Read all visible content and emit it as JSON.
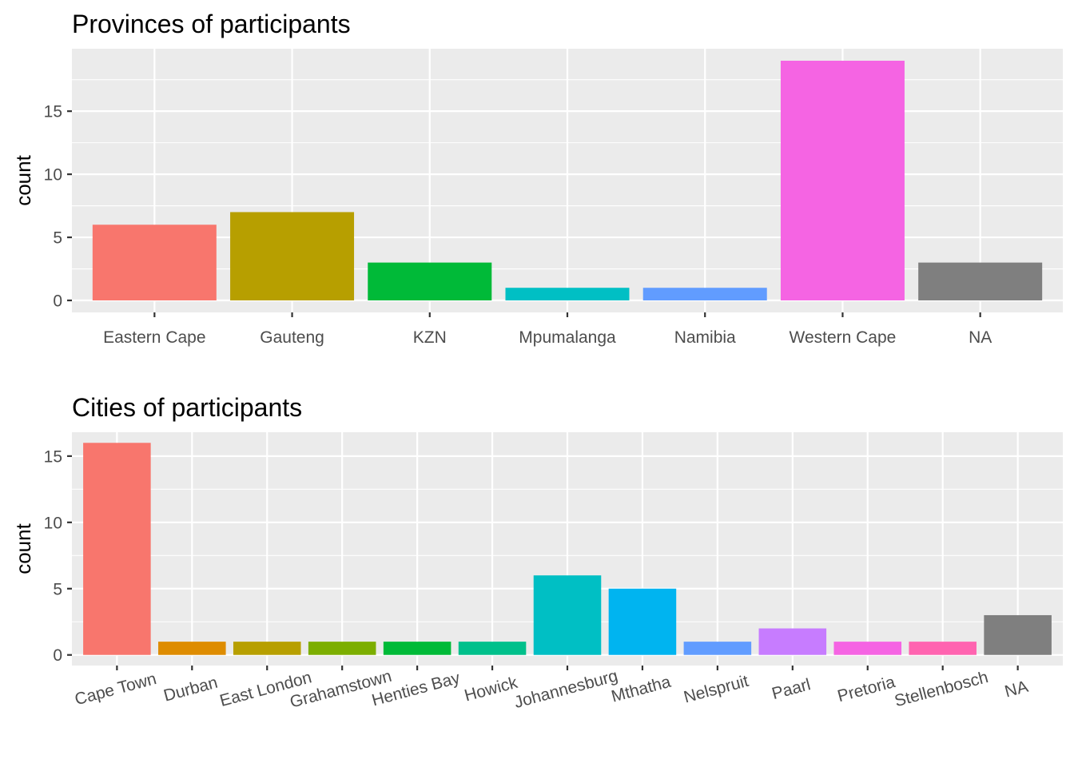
{
  "chart_data": [
    {
      "type": "bar",
      "title": "Provinces of participants",
      "xlabel": "",
      "ylabel": "count",
      "categories": [
        "Eastern Cape",
        "Gauteng",
        "KZN",
        "Mpumalanga",
        "Namibia",
        "Western Cape",
        "NA"
      ],
      "values": [
        6,
        7,
        3,
        1,
        1,
        19,
        3
      ],
      "colors": [
        "#F8766D",
        "#B79F00",
        "#00BA38",
        "#00BFC4",
        "#619CFF",
        "#F564E3",
        "#7F7F7F"
      ],
      "yticks": [
        0,
        5,
        10,
        15
      ],
      "ylim": [
        -0.95,
        19.95
      ],
      "grid": true,
      "legend": "none",
      "x_label_rotation": 0
    },
    {
      "type": "bar",
      "title": "Cities of participants",
      "xlabel": "",
      "ylabel": "count",
      "categories": [
        "Cape Town",
        "Durban",
        "East London",
        "Grahamstown",
        "Henties Bay",
        "Howick",
        "Johannesburg",
        "Mthatha",
        "Nelspruit",
        "Paarl",
        "Pretoria",
        "Stellenbosch",
        "NA"
      ],
      "values": [
        16,
        1,
        1,
        1,
        1,
        1,
        6,
        5,
        1,
        2,
        1,
        1,
        3
      ],
      "colors": [
        "#F8766D",
        "#DE8C00",
        "#B79F00",
        "#7CAE00",
        "#00BA38",
        "#00C08B",
        "#00BFC4",
        "#00B4F0",
        "#619CFF",
        "#C77CFF",
        "#F564E3",
        "#FF64B0",
        "#7F7F7F"
      ],
      "yticks": [
        0,
        5,
        10,
        15
      ],
      "ylim": [
        -0.8,
        16.8
      ],
      "grid": true,
      "legend": "none",
      "x_label_rotation": -15
    }
  ]
}
